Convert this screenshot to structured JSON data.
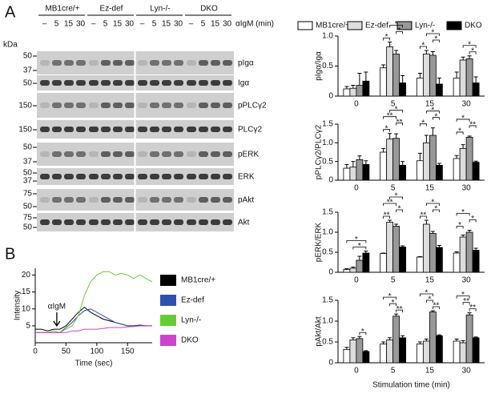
{
  "panel_labels": [
    "A",
    "B"
  ],
  "blot": {
    "groups": [
      "MB1cre/+",
      "Ez-def",
      "Lyn-/-",
      "DKO"
    ],
    "times": [
      "–",
      "5",
      "15",
      "30"
    ],
    "stimulus": "αIgM (min)",
    "kda_label": "kDa",
    "rows": [
      {
        "label": "pIgα",
        "kda": [
          50,
          37
        ]
      },
      {
        "label": "Igα",
        "kda": [
          50
        ]
      },
      {
        "label": "pPLCγ2",
        "kda": [
          150
        ]
      },
      {
        "label": "PLCγ2",
        "kda": [
          150
        ]
      },
      {
        "label": "pERK",
        "kda": [
          50,
          37
        ]
      },
      {
        "label": "ERK",
        "kda": [
          50,
          37
        ]
      },
      {
        "label": "pAkt",
        "kda": [
          75,
          50
        ]
      },
      {
        "label": "Akt",
        "kda": [
          75,
          50
        ]
      }
    ]
  },
  "bar_legend": {
    "names": [
      "MB1cre/+",
      "Ez-def",
      "Lyn-/-",
      "DKO"
    ],
    "colors": [
      "#ffffff",
      "#dddddd",
      "#999999",
      "#000000"
    ]
  },
  "chart_data": [
    {
      "type": "bar",
      "ylabel": "pIgα/Igα",
      "categories": [
        "0",
        "5",
        "15",
        "30"
      ],
      "ylim": [
        0,
        1
      ],
      "yticks": [
        0,
        0.5,
        {
          "value": 1,
          "label": "1.0"
        }
      ],
      "series": [
        {
          "values": [
            0.12,
            0.47,
            0.3,
            0.3
          ],
          "errors": [
            0.04,
            0.05,
            0.08,
            0.1
          ]
        },
        {
          "values": [
            0.13,
            0.82,
            0.7,
            0.6
          ],
          "errors": [
            0.05,
            0.08,
            0.06,
            0.05
          ]
        },
        {
          "values": [
            0.18,
            0.7,
            0.68,
            0.62
          ],
          "errors": [
            0.2,
            0.06,
            0.06,
            0.05
          ]
        },
        {
          "values": [
            0.25,
            0.22,
            0.2,
            0.22
          ],
          "errors": [
            0.15,
            0.12,
            0.1,
            0.1
          ]
        }
      ],
      "significance": [
        {
          "label": "*",
          "category": 1,
          "pair": [
            0,
            1
          ]
        },
        {
          "label": "*",
          "category": 1,
          "pair": [
            2,
            3
          ]
        },
        {
          "label": "*",
          "category": 1,
          "pair": [
            1,
            3
          ]
        },
        {
          "label": "*",
          "category": 2,
          "pair": [
            0,
            1
          ]
        },
        {
          "label": "*",
          "category": 2,
          "pair": [
            2,
            3
          ]
        },
        {
          "label": "*",
          "category": 2,
          "pair": [
            1,
            3
          ]
        },
        {
          "label": "*",
          "category": 3,
          "pair": [
            2,
            3
          ]
        },
        {
          "label": "*",
          "category": 3,
          "pair": [
            1,
            3
          ]
        }
      ]
    },
    {
      "type": "bar",
      "ylabel": "pPLCγ2/PLCγ2",
      "categories": [
        "0",
        "5",
        "15",
        "30"
      ],
      "ylim": [
        0,
        1.5
      ],
      "yticks": [
        0,
        0.5,
        {
          "value": 1,
          "label": "1.0"
        },
        1.5
      ],
      "series": [
        {
          "values": [
            0.32,
            0.75,
            0.52,
            0.58
          ],
          "errors": [
            0.1,
            0.1,
            0.2,
            0.08
          ]
        },
        {
          "values": [
            0.35,
            1.1,
            1.0,
            0.85
          ],
          "errors": [
            0.15,
            0.15,
            0.2,
            0.1
          ]
        },
        {
          "values": [
            0.55,
            1.12,
            1.2,
            1.15
          ],
          "errors": [
            0.1,
            0.12,
            0.2,
            0.03
          ]
        },
        {
          "values": [
            0.42,
            0.4,
            0.4,
            0.48
          ],
          "errors": [
            0.1,
            0.1,
            0.05,
            0.03
          ]
        }
      ],
      "significance": [
        {
          "label": "*",
          "category": 1,
          "pair": [
            0,
            1
          ]
        },
        {
          "label": "**",
          "category": 1,
          "pair": [
            2,
            3
          ]
        },
        {
          "label": "**",
          "category": 1,
          "pair": [
            0,
            2
          ]
        },
        {
          "label": "*",
          "category": 1,
          "pair": [
            1,
            3
          ]
        },
        {
          "label": "*",
          "category": 2,
          "pair": [
            0,
            1
          ]
        },
        {
          "label": "*",
          "category": 2,
          "pair": [
            2,
            3
          ]
        },
        {
          "label": "*",
          "category": 2,
          "pair": [
            1,
            3
          ]
        },
        {
          "label": "*",
          "category": 3,
          "pair": [
            0,
            1
          ]
        },
        {
          "label": "**",
          "category": 3,
          "pair": [
            2,
            3
          ]
        },
        {
          "label": "*",
          "category": 3,
          "pair": [
            0,
            2
          ]
        }
      ]
    },
    {
      "type": "bar",
      "ylabel": "pERK/ERK",
      "categories": [
        "0",
        "5",
        "15",
        "30"
      ],
      "ylim": [
        0,
        1.5
      ],
      "yticks": [
        0,
        0.5,
        {
          "value": 1,
          "label": "1.0"
        },
        1.5
      ],
      "series": [
        {
          "values": [
            0.07,
            0.47,
            0.38,
            0.48
          ],
          "errors": [
            0.02,
            0.01,
            0.01,
            0.03
          ]
        },
        {
          "values": [
            0.1,
            1.25,
            1.2,
            0.88
          ],
          "errors": [
            0.03,
            0.05,
            0.1,
            0.05
          ]
        },
        {
          "values": [
            0.3,
            1.15,
            0.97,
            1.0
          ],
          "errors": [
            0.1,
            0.05,
            0.05,
            0.05
          ]
        },
        {
          "values": [
            0.48,
            0.63,
            0.62,
            0.55
          ],
          "errors": [
            0.05,
            0.03,
            0.05,
            0.05
          ]
        }
      ],
      "significance": [
        {
          "label": "*",
          "category": 0,
          "pair": [
            1,
            3
          ]
        },
        {
          "label": "*",
          "category": 0,
          "pair": [
            0,
            3
          ]
        },
        {
          "label": "**",
          "category": 1,
          "pair": [
            0,
            1
          ]
        },
        {
          "label": "*",
          "category": 1,
          "pair": [
            2,
            3
          ]
        },
        {
          "label": "**",
          "category": 1,
          "pair": [
            0,
            2
          ]
        },
        {
          "label": "*",
          "category": 1,
          "pair": [
            1,
            3
          ]
        },
        {
          "label": "**",
          "category": 2,
          "pair": [
            0,
            1
          ]
        },
        {
          "label": "*",
          "category": 2,
          "pair": [
            2,
            3
          ]
        },
        {
          "label": "*",
          "category": 2,
          "pair": [
            1,
            3
          ]
        },
        {
          "label": "*",
          "category": 3,
          "pair": [
            0,
            1
          ]
        },
        {
          "label": "*",
          "category": 3,
          "pair": [
            2,
            3
          ]
        },
        {
          "label": "*",
          "category": 3,
          "pair": [
            0,
            2
          ]
        }
      ]
    },
    {
      "type": "bar",
      "ylabel": "pAkt/Akt",
      "xlabel": "Stimulation time (min)",
      "categories": [
        "0",
        "5",
        "15",
        "30"
      ],
      "ylim": [
        0,
        1.5
      ],
      "yticks": [
        0,
        0.5,
        {
          "value": 1,
          "label": "1.0"
        },
        1.5
      ],
      "series": [
        {
          "values": [
            0.32,
            0.45,
            0.45,
            0.52
          ],
          "errors": [
            0.05,
            0.05,
            0.05,
            0.05
          ]
        },
        {
          "values": [
            0.55,
            0.55,
            0.52,
            0.48
          ],
          "errors": [
            0.05,
            0.05,
            0.05,
            0.05
          ]
        },
        {
          "values": [
            0.58,
            1.12,
            1.22,
            1.15
          ],
          "errors": [
            0.05,
            0.05,
            0.03,
            0.05
          ]
        },
        {
          "values": [
            0.27,
            0.6,
            0.65,
            0.6
          ],
          "errors": [
            0.02,
            0.05,
            0.02,
            0.02
          ]
        }
      ],
      "significance": [
        {
          "label": "*",
          "category": 0,
          "pair": [
            2,
            3
          ]
        },
        {
          "label": "**",
          "category": 1,
          "pair": [
            2,
            3
          ]
        },
        {
          "label": "*",
          "category": 1,
          "pair": [
            1,
            2
          ]
        },
        {
          "label": "*",
          "category": 1,
          "pair": [
            0,
            2
          ]
        },
        {
          "label": "**",
          "category": 2,
          "pair": [
            2,
            3
          ]
        },
        {
          "label": "*",
          "category": 2,
          "pair": [
            1,
            2
          ]
        },
        {
          "label": "*",
          "category": 2,
          "pair": [
            0,
            2
          ]
        },
        {
          "label": "**",
          "category": 3,
          "pair": [
            2,
            3
          ]
        },
        {
          "label": "**",
          "category": 3,
          "pair": [
            1,
            2
          ]
        },
        {
          "label": "*",
          "category": 3,
          "pair": [
            0,
            2
          ]
        }
      ]
    },
    {
      "type": "line",
      "ylabel": "Intensity",
      "xlabel": "Time (sec)",
      "annotation": {
        "text": "αIgM",
        "x": 35
      },
      "xlim": [
        0,
        190
      ],
      "xticks": [
        0,
        50,
        100,
        150
      ],
      "ylim": [
        0,
        22
      ],
      "yticks": [
        5,
        10,
        15,
        20
      ],
      "x": [
        0,
        10,
        20,
        30,
        40,
        50,
        60,
        70,
        80,
        90,
        100,
        110,
        120,
        130,
        140,
        150,
        160,
        170,
        180,
        190
      ],
      "series": [
        {
          "name": "MB1cre/+",
          "color": "#000000",
          "values": [
            4,
            4,
            3.5,
            4,
            4,
            5,
            7,
            9,
            10.5,
            9,
            8,
            7,
            6.5,
            6,
            5.5,
            5,
            5,
            5.2,
            5,
            5
          ]
        },
        {
          "name": "Ez-def",
          "color": "#3050b0",
          "values": [
            3,
            3,
            3,
            3,
            3,
            4.5,
            6,
            8,
            9.5,
            10,
            9,
            8,
            7,
            6,
            5.5,
            5,
            5,
            5,
            5,
            5
          ]
        },
        {
          "name": "Lyn-/-",
          "color": "#66cc33",
          "values": [
            3,
            3,
            3,
            3.5,
            3,
            4,
            5,
            8,
            14,
            18,
            20,
            21,
            21,
            20,
            20.5,
            20,
            19,
            20,
            19,
            18
          ]
        },
        {
          "name": "DKO",
          "color": "#cc44cc",
          "values": [
            3,
            3,
            3,
            3,
            3,
            3,
            3.5,
            3.5,
            4,
            4,
            4,
            4.2,
            4.5,
            4.5,
            4.5,
            4.7,
            4.8,
            5,
            5,
            5
          ]
        }
      ]
    }
  ]
}
